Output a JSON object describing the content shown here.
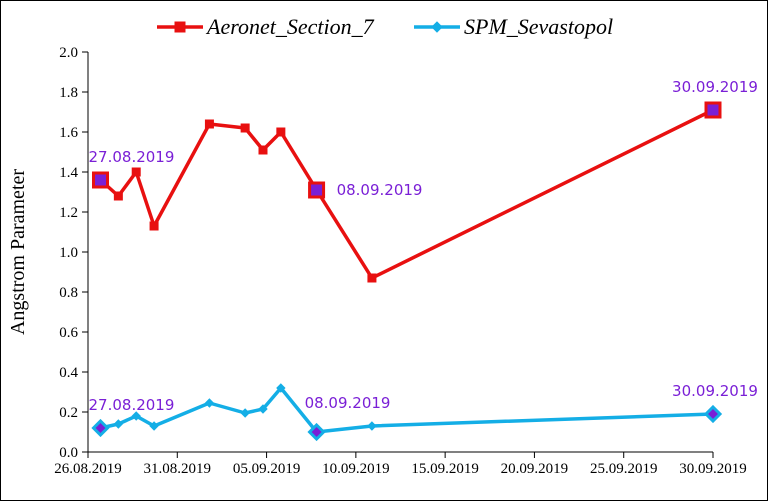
{
  "chart_data": {
    "type": "line",
    "title": "",
    "xlabel": "",
    "ylabel": "Angstrom Parameter",
    "ylim": [
      0,
      2.0
    ],
    "xlim_days": [
      0,
      35
    ],
    "x_ticks": [
      {
        "day": 0,
        "label": "26.08.2019"
      },
      {
        "day": 5,
        "label": "31.08.2019"
      },
      {
        "day": 10,
        "label": "05.09.2019"
      },
      {
        "day": 15,
        "label": "10.09.2019"
      },
      {
        "day": 20,
        "label": "15.09.2019"
      },
      {
        "day": 25,
        "label": "20.09.2019"
      },
      {
        "day": 30,
        "label": "25.09.2019"
      },
      {
        "day": 35,
        "label": "30.09.2019"
      }
    ],
    "y_ticks": [
      "0.0",
      "0.2",
      "0.4",
      "0.6",
      "0.8",
      "1.0",
      "1.2",
      "1.4",
      "1.6",
      "1.8",
      "2.0"
    ],
    "legend_position": "top-center",
    "series": [
      {
        "name": "Aeronet_Section_7",
        "color": "#e81010",
        "marker": "square",
        "points": [
          {
            "day": 0.7,
            "value": 1.36
          },
          {
            "day": 1.7,
            "value": 1.28
          },
          {
            "day": 2.7,
            "value": 1.4
          },
          {
            "day": 3.7,
            "value": 1.13
          },
          {
            "day": 6.8,
            "value": 1.64
          },
          {
            "day": 8.8,
            "value": 1.62
          },
          {
            "day": 9.8,
            "value": 1.51
          },
          {
            "day": 10.8,
            "value": 1.6
          },
          {
            "day": 12.8,
            "value": 1.31
          },
          {
            "day": 15.9,
            "value": 0.87
          },
          {
            "day": 35.0,
            "value": 1.71
          }
        ],
        "highlights": [
          {
            "day": 0.7,
            "value": 1.36,
            "label": "27.08.2019"
          },
          {
            "day": 12.8,
            "value": 1.31,
            "label": "08.09.2019"
          },
          {
            "day": 35.0,
            "value": 1.71,
            "label": "30.09.2019"
          }
        ]
      },
      {
        "name": "SPM_Sevastopol",
        "color": "#14aee6",
        "marker": "diamond",
        "points": [
          {
            "day": 0.7,
            "value": 0.12
          },
          {
            "day": 1.7,
            "value": 0.14
          },
          {
            "day": 2.7,
            "value": 0.18
          },
          {
            "day": 3.7,
            "value": 0.13
          },
          {
            "day": 6.8,
            "value": 0.245
          },
          {
            "day": 8.8,
            "value": 0.195
          },
          {
            "day": 9.8,
            "value": 0.215
          },
          {
            "day": 10.8,
            "value": 0.32
          },
          {
            "day": 12.8,
            "value": 0.1
          },
          {
            "day": 15.9,
            "value": 0.13
          },
          {
            "day": 35.0,
            "value": 0.19
          }
        ],
        "highlights": [
          {
            "day": 0.7,
            "value": 0.12,
            "label": "27.08.2019"
          },
          {
            "day": 12.8,
            "value": 0.1,
            "label": "08.09.2019"
          },
          {
            "day": 35.0,
            "value": 0.19,
            "label": "30.09.2019"
          }
        ]
      }
    ]
  },
  "styles": {
    "highlight_fill": "#7a1fd6",
    "annotation_color": "#7a1fd6",
    "axis_color": "#000000"
  }
}
